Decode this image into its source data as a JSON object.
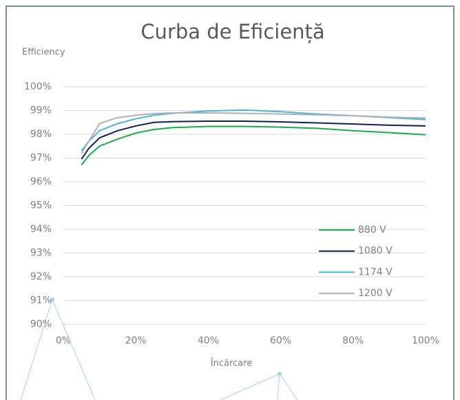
{
  "chart_data": {
    "type": "line",
    "title": "Curba de Eficiență",
    "y_label": "Efficiency",
    "x_label": "Încărcare",
    "x": [
      5,
      7,
      10,
      15,
      20,
      25,
      30,
      40,
      50,
      60,
      70,
      80,
      90,
      100
    ],
    "series": [
      {
        "name": "880 V",
        "color": "#1aab4b",
        "values": [
          96.7,
          97.1,
          97.5,
          97.8,
          98.05,
          98.2,
          98.28,
          98.33,
          98.33,
          98.3,
          98.25,
          98.15,
          98.07,
          97.98
        ]
      },
      {
        "name": "1080 V",
        "color": "#0d1f5c",
        "values": [
          96.95,
          97.4,
          97.85,
          98.15,
          98.35,
          98.5,
          98.53,
          98.55,
          98.55,
          98.52,
          98.48,
          98.43,
          98.38,
          98.35
        ]
      },
      {
        "name": "1174 V",
        "color": "#4ab4d8",
        "values": [
          97.3,
          97.7,
          98.15,
          98.45,
          98.65,
          98.8,
          98.88,
          98.98,
          99.02,
          98.95,
          98.85,
          98.78,
          98.7,
          98.62
        ]
      },
      {
        "name": "1200 V",
        "color": "#b0b0b8",
        "values": [
          97.2,
          97.7,
          98.45,
          98.7,
          98.8,
          98.87,
          98.9,
          98.9,
          98.88,
          98.85,
          98.82,
          98.78,
          98.72,
          98.68
        ]
      }
    ],
    "xlim": [
      0,
      100
    ],
    "xticks": [
      {
        "value": 0,
        "label": "0%"
      },
      {
        "value": 20,
        "label": "20%"
      },
      {
        "value": 40,
        "label": "40%"
      },
      {
        "value": 60,
        "label": "60%"
      },
      {
        "value": 80,
        "label": "80%"
      },
      {
        "value": 100,
        "label": "100%"
      }
    ],
    "ylim": [
      90,
      100
    ],
    "yticks": [
      {
        "value": 90,
        "label": "90%"
      },
      {
        "value": 91,
        "label": "91%"
      },
      {
        "value": 92,
        "label": "92%"
      },
      {
        "value": 93,
        "label": "93%"
      },
      {
        "value": 94,
        "label": "94%"
      },
      {
        "value": 95,
        "label": "95%"
      },
      {
        "value": 96,
        "label": "96%"
      },
      {
        "value": 97,
        "label": "97%"
      },
      {
        "value": 98,
        "label": "98%"
      },
      {
        "value": 99,
        "label": "99%"
      },
      {
        "value": 100,
        "label": "100%"
      }
    ],
    "grid": true,
    "legend": "right"
  }
}
